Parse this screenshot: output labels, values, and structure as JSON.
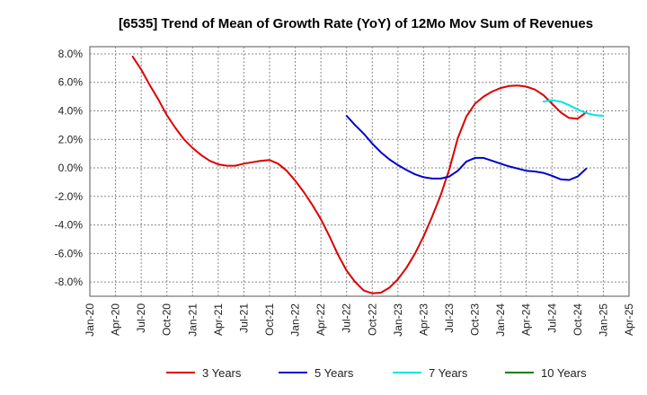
{
  "chart_data": {
    "type": "line",
    "title": "[6535]  Trend of Mean of Growth Rate (YoY) of 12Mo Mov Sum of Revenues",
    "xlabel": "",
    "ylabel": "",
    "ylim": [
      -9.0,
      8.5
    ],
    "yticks": [
      8.0,
      6.0,
      4.0,
      2.0,
      0.0,
      -2.0,
      -4.0,
      -6.0,
      -8.0
    ],
    "ytick_labels": [
      "8.0%",
      "6.0%",
      "4.0%",
      "2.0%",
      "0.0%",
      "-2.0%",
      "-4.0%",
      "-6.0%",
      "-8.0%"
    ],
    "xticks": [
      "Jan-20",
      "Apr-20",
      "Jul-20",
      "Oct-20",
      "Jan-21",
      "Apr-21",
      "Jul-21",
      "Oct-21",
      "Jan-22",
      "Apr-22",
      "Jul-22",
      "Oct-22",
      "Jan-23",
      "Apr-23",
      "Jul-23",
      "Oct-23",
      "Jan-24",
      "Apr-24",
      "Jul-24",
      "Oct-24",
      "Jan-25",
      "Apr-25"
    ],
    "grid": true,
    "legend_position": "bottom",
    "series": [
      {
        "name": "3 Years",
        "color": "#dd0000",
        "x": [
          "2020-06",
          "2020-07",
          "2020-08",
          "2020-09",
          "2020-10",
          "2020-11",
          "2020-12",
          "2021-01",
          "2021-02",
          "2021-03",
          "2021-04",
          "2021-05",
          "2021-06",
          "2021-07",
          "2021-08",
          "2021-09",
          "2021-10",
          "2021-11",
          "2021-12",
          "2022-01",
          "2022-02",
          "2022-03",
          "2022-04",
          "2022-05",
          "2022-06",
          "2022-07",
          "2022-08",
          "2022-09",
          "2022-10",
          "2022-11",
          "2022-12",
          "2023-01",
          "2023-02",
          "2023-03",
          "2023-04",
          "2023-05",
          "2023-06",
          "2023-07",
          "2023-08",
          "2023-09",
          "2023-10",
          "2023-11",
          "2023-12",
          "2024-01",
          "2024-02",
          "2024-03",
          "2024-04",
          "2024-05",
          "2024-06",
          "2024-07",
          "2024-08",
          "2024-09",
          "2024-10",
          "2024-11",
          "2024-12",
          "2025-01"
        ],
        "values": [
          7.8,
          6.9,
          5.8,
          4.8,
          3.7,
          2.8,
          2.0,
          1.4,
          0.9,
          0.5,
          0.25,
          0.15,
          0.15,
          0.3,
          0.4,
          0.5,
          0.55,
          0.3,
          -0.2,
          -0.9,
          -1.7,
          -2.6,
          -3.6,
          -4.8,
          -6.1,
          -7.2,
          -8.0,
          -8.6,
          -8.8,
          -8.75,
          -8.4,
          -7.8,
          -7.0,
          -6.0,
          -4.8,
          -3.4,
          -1.9,
          -0.1,
          2.1,
          3.6,
          4.5,
          5.0,
          5.35,
          5.6,
          5.75,
          5.78,
          5.7,
          5.5,
          5.1,
          4.5,
          3.9,
          3.5,
          3.45,
          3.9,
          null,
          null
        ]
      },
      {
        "name": "5 Years",
        "color": "#0000cc",
        "x": [
          "2022-07",
          "2022-08",
          "2022-09",
          "2022-10",
          "2022-11",
          "2022-12",
          "2023-01",
          "2023-02",
          "2023-03",
          "2023-04",
          "2023-05",
          "2023-06",
          "2023-07",
          "2023-08",
          "2023-09",
          "2023-10",
          "2023-11",
          "2023-12",
          "2024-01",
          "2024-02",
          "2024-03",
          "2024-04",
          "2024-05",
          "2024-06",
          "2024-07",
          "2024-08",
          "2024-09",
          "2024-10",
          "2024-11",
          "2024-12",
          "2025-01"
        ],
        "values": [
          3.65,
          3.0,
          2.4,
          1.7,
          1.1,
          0.6,
          0.2,
          -0.15,
          -0.45,
          -0.65,
          -0.75,
          -0.75,
          -0.6,
          -0.2,
          0.45,
          0.7,
          0.7,
          0.5,
          0.3,
          0.1,
          -0.05,
          -0.2,
          -0.25,
          -0.35,
          -0.55,
          -0.8,
          -0.85,
          -0.6,
          -0.05,
          null,
          null
        ]
      },
      {
        "name": "7 Years",
        "color": "#00e5e5",
        "x": [
          "2024-06",
          "2024-07",
          "2024-08",
          "2024-09",
          "2024-10",
          "2024-11",
          "2024-12",
          "2025-01"
        ],
        "values": [
          4.65,
          4.75,
          4.65,
          4.4,
          4.1,
          3.85,
          3.7,
          3.65
        ]
      },
      {
        "name": "10 Years",
        "color": "#008000",
        "x": [],
        "values": []
      }
    ]
  }
}
